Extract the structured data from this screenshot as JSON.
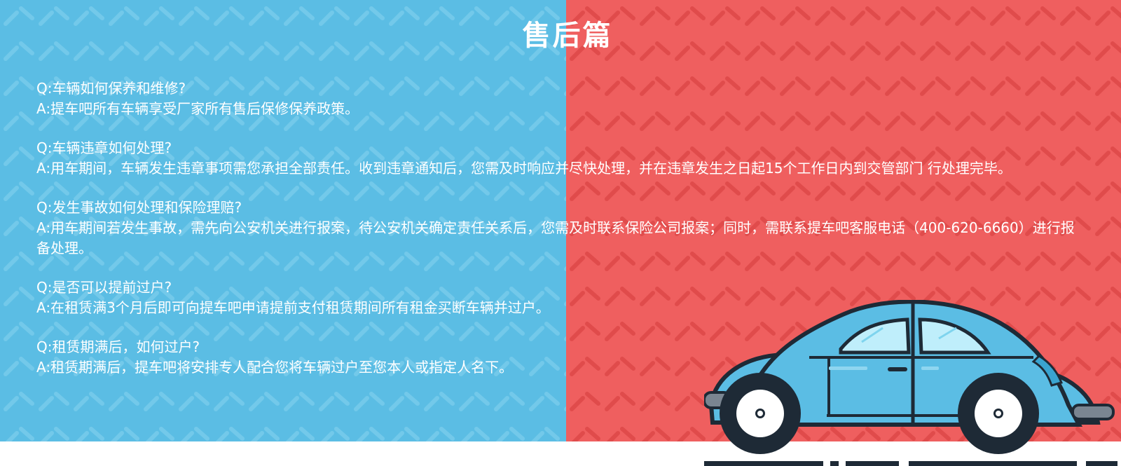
{
  "page": {
    "title": "售后篇",
    "colors": {
      "left_bg": "#5bbde4",
      "right_bg": "#ef5f5f",
      "text": "#ffffff"
    }
  },
  "faq": [
    {
      "q": "Q:车辆如何保养和维修?",
      "a": "A:提车吧所有车辆享受厂家所有售后保修保养政策。"
    },
    {
      "q": "Q:车辆违章如何处理?",
      "a": "A:用车期间，车辆发生违章事项需您承担全部责任。收到违章通知后，您需及时响应并尽快处理，并在违章发生之日起15个工作日内到交管部门    行处理完毕。"
    },
    {
      "q": "Q:发生事故如何处理和保险理赔?",
      "a": "A:用车期间若发生事故，需先向公安机关进行报案，待公安机关确定责任关系后，您需及时联系保险公司报案；同时，需联系提车吧客服电话（400-620-6660）进行报备处理。"
    },
    {
      "q": "Q:是否可以提前过户?",
      "a": "A:在租赁满3个月后即可向提车吧申请提前支付租赁期间所有租金买断车辆并过户。"
    },
    {
      "q": "Q:租赁期满后，如何过户?",
      "a": "A:租赁期满后，提车吧将安排专人配合您将车辆过户至您本人或指定人名下。"
    }
  ],
  "illustration": {
    "icon": "car-icon",
    "car_color": "#5bbde4"
  }
}
